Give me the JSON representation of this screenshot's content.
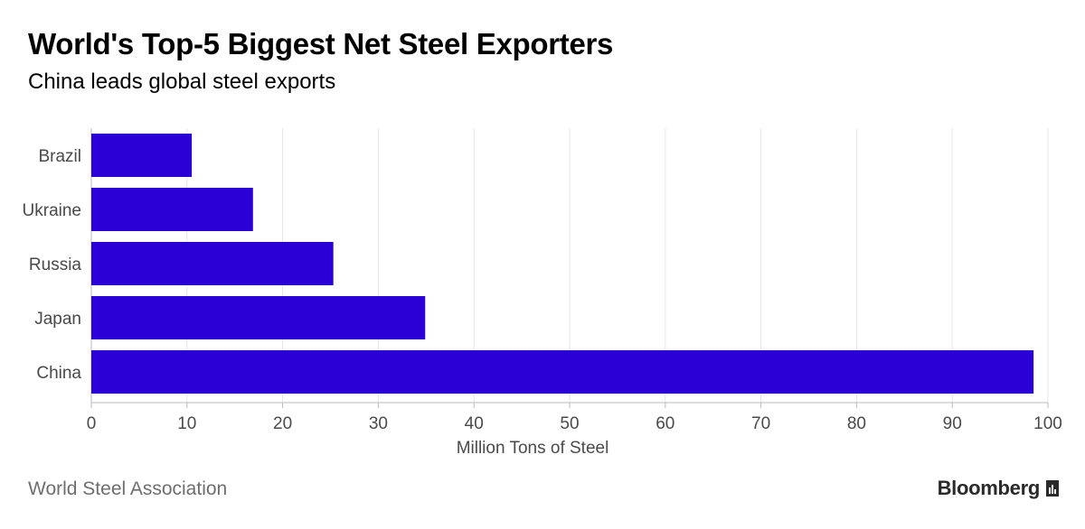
{
  "header": {
    "title": "World's Top-5 Biggest Net Steel Exporters",
    "subtitle": "China leads global steel exports"
  },
  "footer": {
    "source": "World Steel Association",
    "brand": "Bloomberg",
    "brand_icon": "bloomberg-chart-icon"
  },
  "colors": {
    "bar": "#2a00d6",
    "grid": "#e6e6e6",
    "axis": "#bbbbbb",
    "text": "#4a4a4a"
  },
  "chart_data": {
    "type": "bar",
    "orientation": "horizontal",
    "title": "World's Top-5 Biggest Net Steel Exporters",
    "subtitle": "China leads global steel exports",
    "categories": [
      "Brazil",
      "Ukraine",
      "Russia",
      "Japan",
      "China"
    ],
    "values": [
      10.5,
      16.9,
      25.3,
      34.9,
      98.5
    ],
    "xlabel": "Million Tons of Steel",
    "ylabel": "",
    "xlim": [
      0,
      100
    ],
    "xticks": [
      0,
      10,
      20,
      30,
      40,
      50,
      60,
      70,
      80,
      90,
      100
    ],
    "grid": true,
    "legend": "none"
  }
}
